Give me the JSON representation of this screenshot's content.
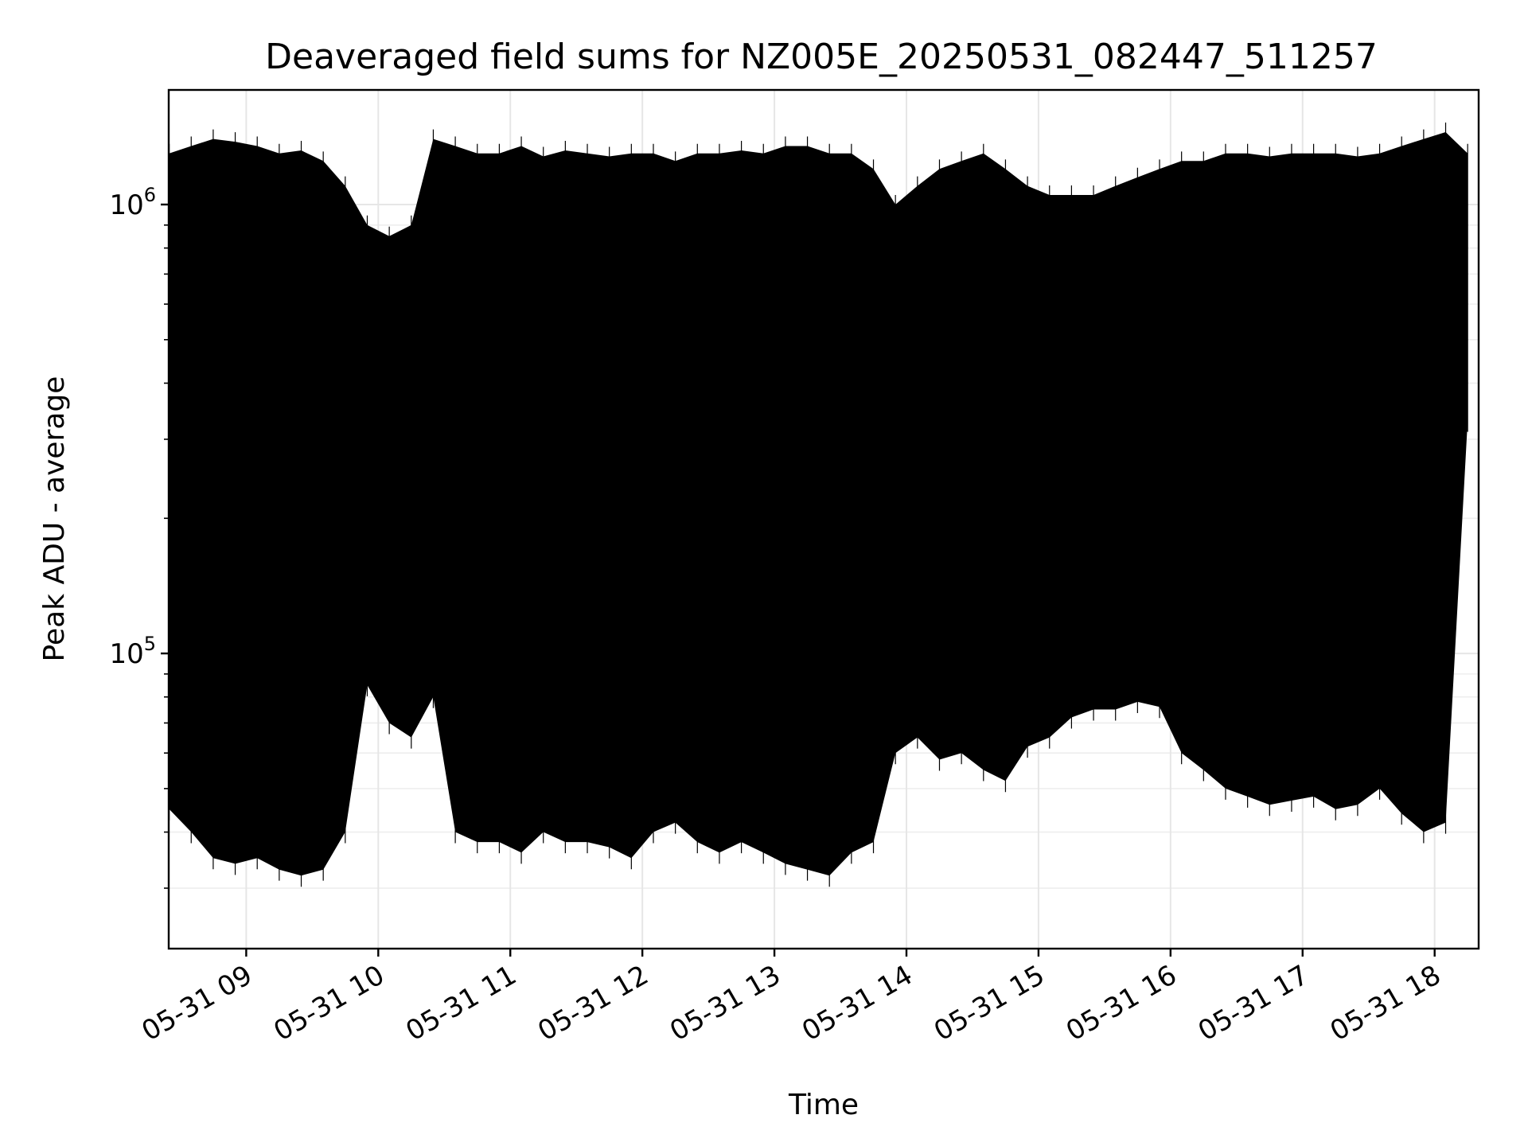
{
  "chart_data": {
    "type": "line",
    "title": "Deaveraged field sums for NZ005E_20250531_082447_511257",
    "xlabel": "Time",
    "ylabel": "Peak ADU - average",
    "yscale": "log",
    "ylim": [
      22000,
      1800000
    ],
    "xlim": [
      "2025-05-31T08:24:47",
      "2025-05-31T18:20:00"
    ],
    "grid": true,
    "line_color": "#000000",
    "x_ticks": [
      {
        "value": "2025-05-31T09:00",
        "label": "05-31 09"
      },
      {
        "value": "2025-05-31T10:00",
        "label": "05-31 10"
      },
      {
        "value": "2025-05-31T11:00",
        "label": "05-31 11"
      },
      {
        "value": "2025-05-31T12:00",
        "label": "05-31 12"
      },
      {
        "value": "2025-05-31T13:00",
        "label": "05-31 13"
      },
      {
        "value": "2025-05-31T14:00",
        "label": "05-31 14"
      },
      {
        "value": "2025-05-31T15:00",
        "label": "05-31 15"
      },
      {
        "value": "2025-05-31T16:00",
        "label": "05-31 16"
      },
      {
        "value": "2025-05-31T17:00",
        "label": "05-31 17"
      },
      {
        "value": "2025-05-31T18:00",
        "label": "05-31 18"
      }
    ],
    "y_ticks": [
      {
        "value": 100000,
        "base": "10",
        "exp": "5"
      },
      {
        "value": 1000000,
        "base": "10",
        "exp": "6"
      }
    ],
    "series": [
      {
        "x": [
          "2025-05-31T08:25",
          "2025-05-31T08:35",
          "2025-05-31T08:45",
          "2025-05-31T08:55",
          "2025-05-31T09:05",
          "2025-05-31T09:15",
          "2025-05-31T09:25",
          "2025-05-31T09:35",
          "2025-05-31T09:45",
          "2025-05-31T09:55",
          "2025-05-31T10:05",
          "2025-05-31T10:15",
          "2025-05-31T10:25",
          "2025-05-31T10:35",
          "2025-05-31T10:45",
          "2025-05-31T10:55",
          "2025-05-31T11:05",
          "2025-05-31T11:15",
          "2025-05-31T11:25",
          "2025-05-31T11:35",
          "2025-05-31T11:45",
          "2025-05-31T11:55",
          "2025-05-31T12:05",
          "2025-05-31T12:15",
          "2025-05-31T12:25",
          "2025-05-31T12:35",
          "2025-05-31T12:45",
          "2025-05-31T12:55",
          "2025-05-31T13:05",
          "2025-05-31T13:15",
          "2025-05-31T13:25",
          "2025-05-31T13:35",
          "2025-05-31T13:45",
          "2025-05-31T13:55",
          "2025-05-31T14:05",
          "2025-05-31T14:15",
          "2025-05-31T14:25",
          "2025-05-31T14:35",
          "2025-05-31T14:45",
          "2025-05-31T14:55",
          "2025-05-31T15:05",
          "2025-05-31T15:15",
          "2025-05-31T15:25",
          "2025-05-31T15:35",
          "2025-05-31T15:45",
          "2025-05-31T15:55",
          "2025-05-31T16:05",
          "2025-05-31T16:15",
          "2025-05-31T16:25",
          "2025-05-31T16:35",
          "2025-05-31T16:45",
          "2025-05-31T16:55",
          "2025-05-31T17:05",
          "2025-05-31T17:15",
          "2025-05-31T17:25",
          "2025-05-31T17:35",
          "2025-05-31T17:45",
          "2025-05-31T17:55",
          "2025-05-31T18:05",
          "2025-05-31T18:15"
        ],
        "upper": [
          1300000,
          1350000,
          1400000,
          1380000,
          1350000,
          1300000,
          1320000,
          1250000,
          1100000,
          900000,
          850000,
          900000,
          1400000,
          1350000,
          1300000,
          1300000,
          1350000,
          1280000,
          1320000,
          1300000,
          1280000,
          1300000,
          1300000,
          1250000,
          1300000,
          1300000,
          1320000,
          1300000,
          1350000,
          1350000,
          1300000,
          1300000,
          1200000,
          1000000,
          1100000,
          1200000,
          1250000,
          1300000,
          1200000,
          1100000,
          1050000,
          1050000,
          1050000,
          1100000,
          1150000,
          1200000,
          1250000,
          1250000,
          1300000,
          1300000,
          1280000,
          1300000,
          1300000,
          1300000,
          1280000,
          1300000,
          1350000,
          1400000,
          1450000,
          1300000
        ],
        "lower": [
          45000,
          40000,
          35000,
          34000,
          35000,
          33000,
          32000,
          33000,
          40000,
          85000,
          70000,
          65000,
          80000,
          40000,
          38000,
          38000,
          36000,
          40000,
          38000,
          38000,
          37000,
          35000,
          40000,
          42000,
          38000,
          36000,
          38000,
          36000,
          34000,
          33000,
          32000,
          36000,
          38000,
          60000,
          65000,
          58000,
          60000,
          55000,
          52000,
          62000,
          65000,
          72000,
          75000,
          75000,
          78000,
          76000,
          60000,
          55000,
          50000,
          48000,
          46000,
          47000,
          48000,
          45000,
          46000,
          50000,
          44000,
          40000,
          42000,
          330000
        ]
      }
    ]
  }
}
